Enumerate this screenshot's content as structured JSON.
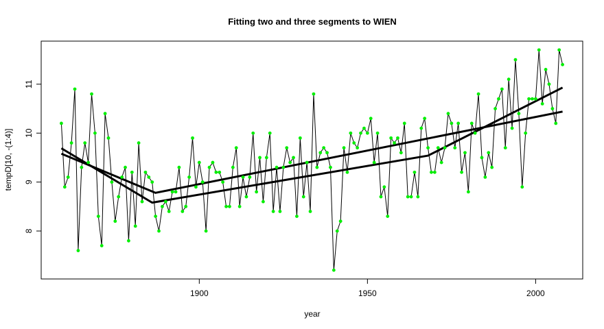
{
  "chart_data": {
    "type": "line",
    "title": "Fitting two and three segments to WIEN",
    "xlabel": "year",
    "ylabel": "tempD[10, -(1:4)]",
    "xlim": [
      1853,
      2014
    ],
    "ylim": [
      7.02,
      11.88
    ],
    "xticks": [
      1900,
      1950,
      2000
    ],
    "yticks": [
      8,
      9,
      10,
      11
    ],
    "series": [
      {
        "color": "#000000",
        "marker_color": "#00ee00",
        "line_width": 1,
        "markers": true,
        "x": [
          1859,
          1860,
          1861,
          1862,
          1863,
          1864,
          1865,
          1866,
          1867,
          1868,
          1869,
          1870,
          1871,
          1872,
          1873,
          1874,
          1875,
          1876,
          1877,
          1878,
          1879,
          1880,
          1881,
          1882,
          1883,
          1884,
          1885,
          1886,
          1887,
          1888,
          1889,
          1890,
          1891,
          1892,
          1893,
          1894,
          1895,
          1896,
          1897,
          1898,
          1899,
          1900,
          1901,
          1902,
          1903,
          1904,
          1905,
          1906,
          1907,
          1908,
          1909,
          1910,
          1911,
          1912,
          1913,
          1914,
          1915,
          1916,
          1917,
          1918,
          1919,
          1920,
          1921,
          1922,
          1923,
          1924,
          1925,
          1926,
          1927,
          1928,
          1929,
          1930,
          1931,
          1932,
          1933,
          1934,
          1935,
          1936,
          1937,
          1938,
          1939,
          1940,
          1941,
          1942,
          1943,
          1944,
          1945,
          1946,
          1947,
          1948,
          1949,
          1950,
          1951,
          1952,
          1953,
          1954,
          1955,
          1956,
          1957,
          1958,
          1959,
          1960,
          1961,
          1962,
          1963,
          1964,
          1965,
          1966,
          1967,
          1968,
          1969,
          1970,
          1971,
          1972,
          1973,
          1974,
          1975,
          1976,
          1977,
          1978,
          1979,
          1980,
          1981,
          1982,
          1983,
          1984,
          1985,
          1986,
          1987,
          1988,
          1989,
          1990,
          1991,
          1992,
          1993,
          1994,
          1995,
          1996,
          1997,
          1998,
          1999,
          2000,
          2001,
          2002,
          2003,
          2004,
          2005,
          2006,
          2007,
          2008
        ],
        "values": [
          10.2,
          8.9,
          9.1,
          9.8,
          10.9,
          7.6,
          9.3,
          9.8,
          9.4,
          10.8,
          10.0,
          8.3,
          7.7,
          10.4,
          9.9,
          9.0,
          8.2,
          8.7,
          9.1,
          9.3,
          7.8,
          9.2,
          8.1,
          9.8,
          8.6,
          9.2,
          9.1,
          9.0,
          8.3,
          8.0,
          8.5,
          8.6,
          8.4,
          8.8,
          8.8,
          9.3,
          8.4,
          8.5,
          9.1,
          9.9,
          8.9,
          9.4,
          9.0,
          8.0,
          9.3,
          9.4,
          9.2,
          9.2,
          9.0,
          8.5,
          8.5,
          9.3,
          9.7,
          8.5,
          9.1,
          8.7,
          9.1,
          10.0,
          8.8,
          9.5,
          8.6,
          9.5,
          10.0,
          8.4,
          9.3,
          8.4,
          9.3,
          9.7,
          9.4,
          9.5,
          8.3,
          9.9,
          8.7,
          9.4,
          8.4,
          10.8,
          9.3,
          9.6,
          9.7,
          9.6,
          9.3,
          7.2,
          8.0,
          8.2,
          9.7,
          9.2,
          10.0,
          9.8,
          9.7,
          10.0,
          10.1,
          10.0,
          10.3,
          9.4,
          10.0,
          8.7,
          8.9,
          8.3,
          9.9,
          9.8,
          9.9,
          9.6,
          10.2,
          8.7,
          8.7,
          9.2,
          8.7,
          10.1,
          10.3,
          9.7,
          9.2,
          9.2,
          9.7,
          9.4,
          9.7,
          10.4,
          10.2,
          9.7,
          10.2,
          9.2,
          9.6,
          8.8,
          10.2,
          10.0,
          10.8,
          9.5,
          9.1,
          9.6,
          9.3,
          10.5,
          10.7,
          10.9,
          9.7,
          11.1,
          10.1,
          11.5,
          10.4,
          8.9,
          10.0,
          10.7,
          10.7,
          10.7,
          11.7,
          10.6,
          11.3,
          11.0,
          10.5,
          10.2,
          11.7,
          11.4
        ]
      },
      {
        "color": "#000000",
        "line_width": 3,
        "markers": false,
        "x": [
          1859,
          1887,
          2008
        ],
        "values": [
          9.58,
          8.78,
          10.44
        ]
      },
      {
        "color": "#000000",
        "line_width": 3,
        "markers": false,
        "x": [
          1859,
          1886,
          1968,
          2008
        ],
        "values": [
          9.69,
          8.58,
          9.54,
          10.93
        ]
      }
    ]
  }
}
